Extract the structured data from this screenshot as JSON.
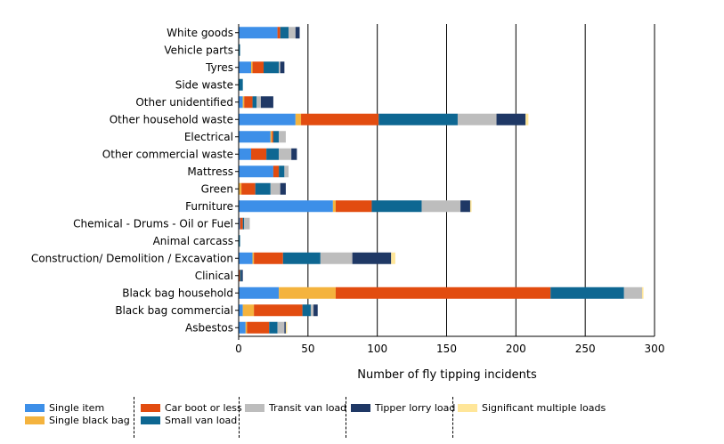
{
  "chart_data": {
    "type": "bar",
    "orientation": "horizontal",
    "stacked": true,
    "title": "",
    "xlabel": "Number of fly tipping incidents",
    "ylabel": "",
    "xlim": [
      0,
      300
    ],
    "xticks": [
      0,
      50,
      100,
      150,
      200,
      250,
      300
    ],
    "grid": "vertical",
    "legend_position": "bottom",
    "categories": [
      "White goods",
      "Vehicle parts",
      "Tyres",
      "Side waste",
      "Other unidentified",
      "Other household waste",
      "Electrical",
      "Other commercial waste",
      "Mattress",
      "Green",
      "Furniture",
      "Chemical - Drums - Oil or Fuel",
      "Animal carcass",
      "Construction/ Demolition / Excavation",
      "Clinical",
      "Black bag household",
      "Black bag commercial",
      "Asbestos"
    ],
    "series": [
      {
        "name": "Single item",
        "color": "#3D8FE8",
        "values": [
          28,
          0,
          9,
          0,
          3,
          41,
          23,
          9,
          25,
          0,
          68,
          1,
          0,
          10,
          0,
          29,
          3,
          5
        ]
      },
      {
        "name": "Single black bag",
        "color": "#F4B33E",
        "values": [
          0,
          0,
          1,
          0,
          1,
          4,
          1,
          0,
          0,
          2,
          2,
          0,
          0,
          1,
          0,
          41,
          8,
          1
        ]
      },
      {
        "name": "Car boot or less",
        "color": "#E24C10",
        "values": [
          2,
          0,
          8,
          0,
          6,
          56,
          1,
          11,
          4,
          10,
          26,
          2,
          0,
          21,
          1,
          155,
          35,
          16
        ]
      },
      {
        "name": "Small van load",
        "color": "#0E6792",
        "values": [
          6,
          1,
          11,
          3,
          3,
          57,
          4,
          9,
          4,
          11,
          36,
          1,
          1,
          27,
          1,
          53,
          6,
          6
        ]
      },
      {
        "name": "Transit van load",
        "color": "#BDBDBD",
        "values": [
          5,
          0,
          1,
          0,
          3,
          28,
          5,
          9,
          3,
          7,
          28,
          4,
          0,
          23,
          0,
          13,
          2,
          5
        ]
      },
      {
        "name": "Tipper lorry load",
        "color": "#1F3865",
        "values": [
          3,
          0,
          3,
          0,
          9,
          21,
          0,
          4,
          0,
          4,
          7,
          0,
          0,
          28,
          1,
          0,
          3,
          1
        ]
      },
      {
        "name": "Significant multiple loads",
        "color": "#FFE699",
        "values": [
          0,
          0,
          0,
          0,
          0,
          2,
          0,
          0,
          0,
          0,
          1,
          0,
          0,
          3,
          0,
          1,
          0,
          1
        ]
      }
    ]
  }
}
